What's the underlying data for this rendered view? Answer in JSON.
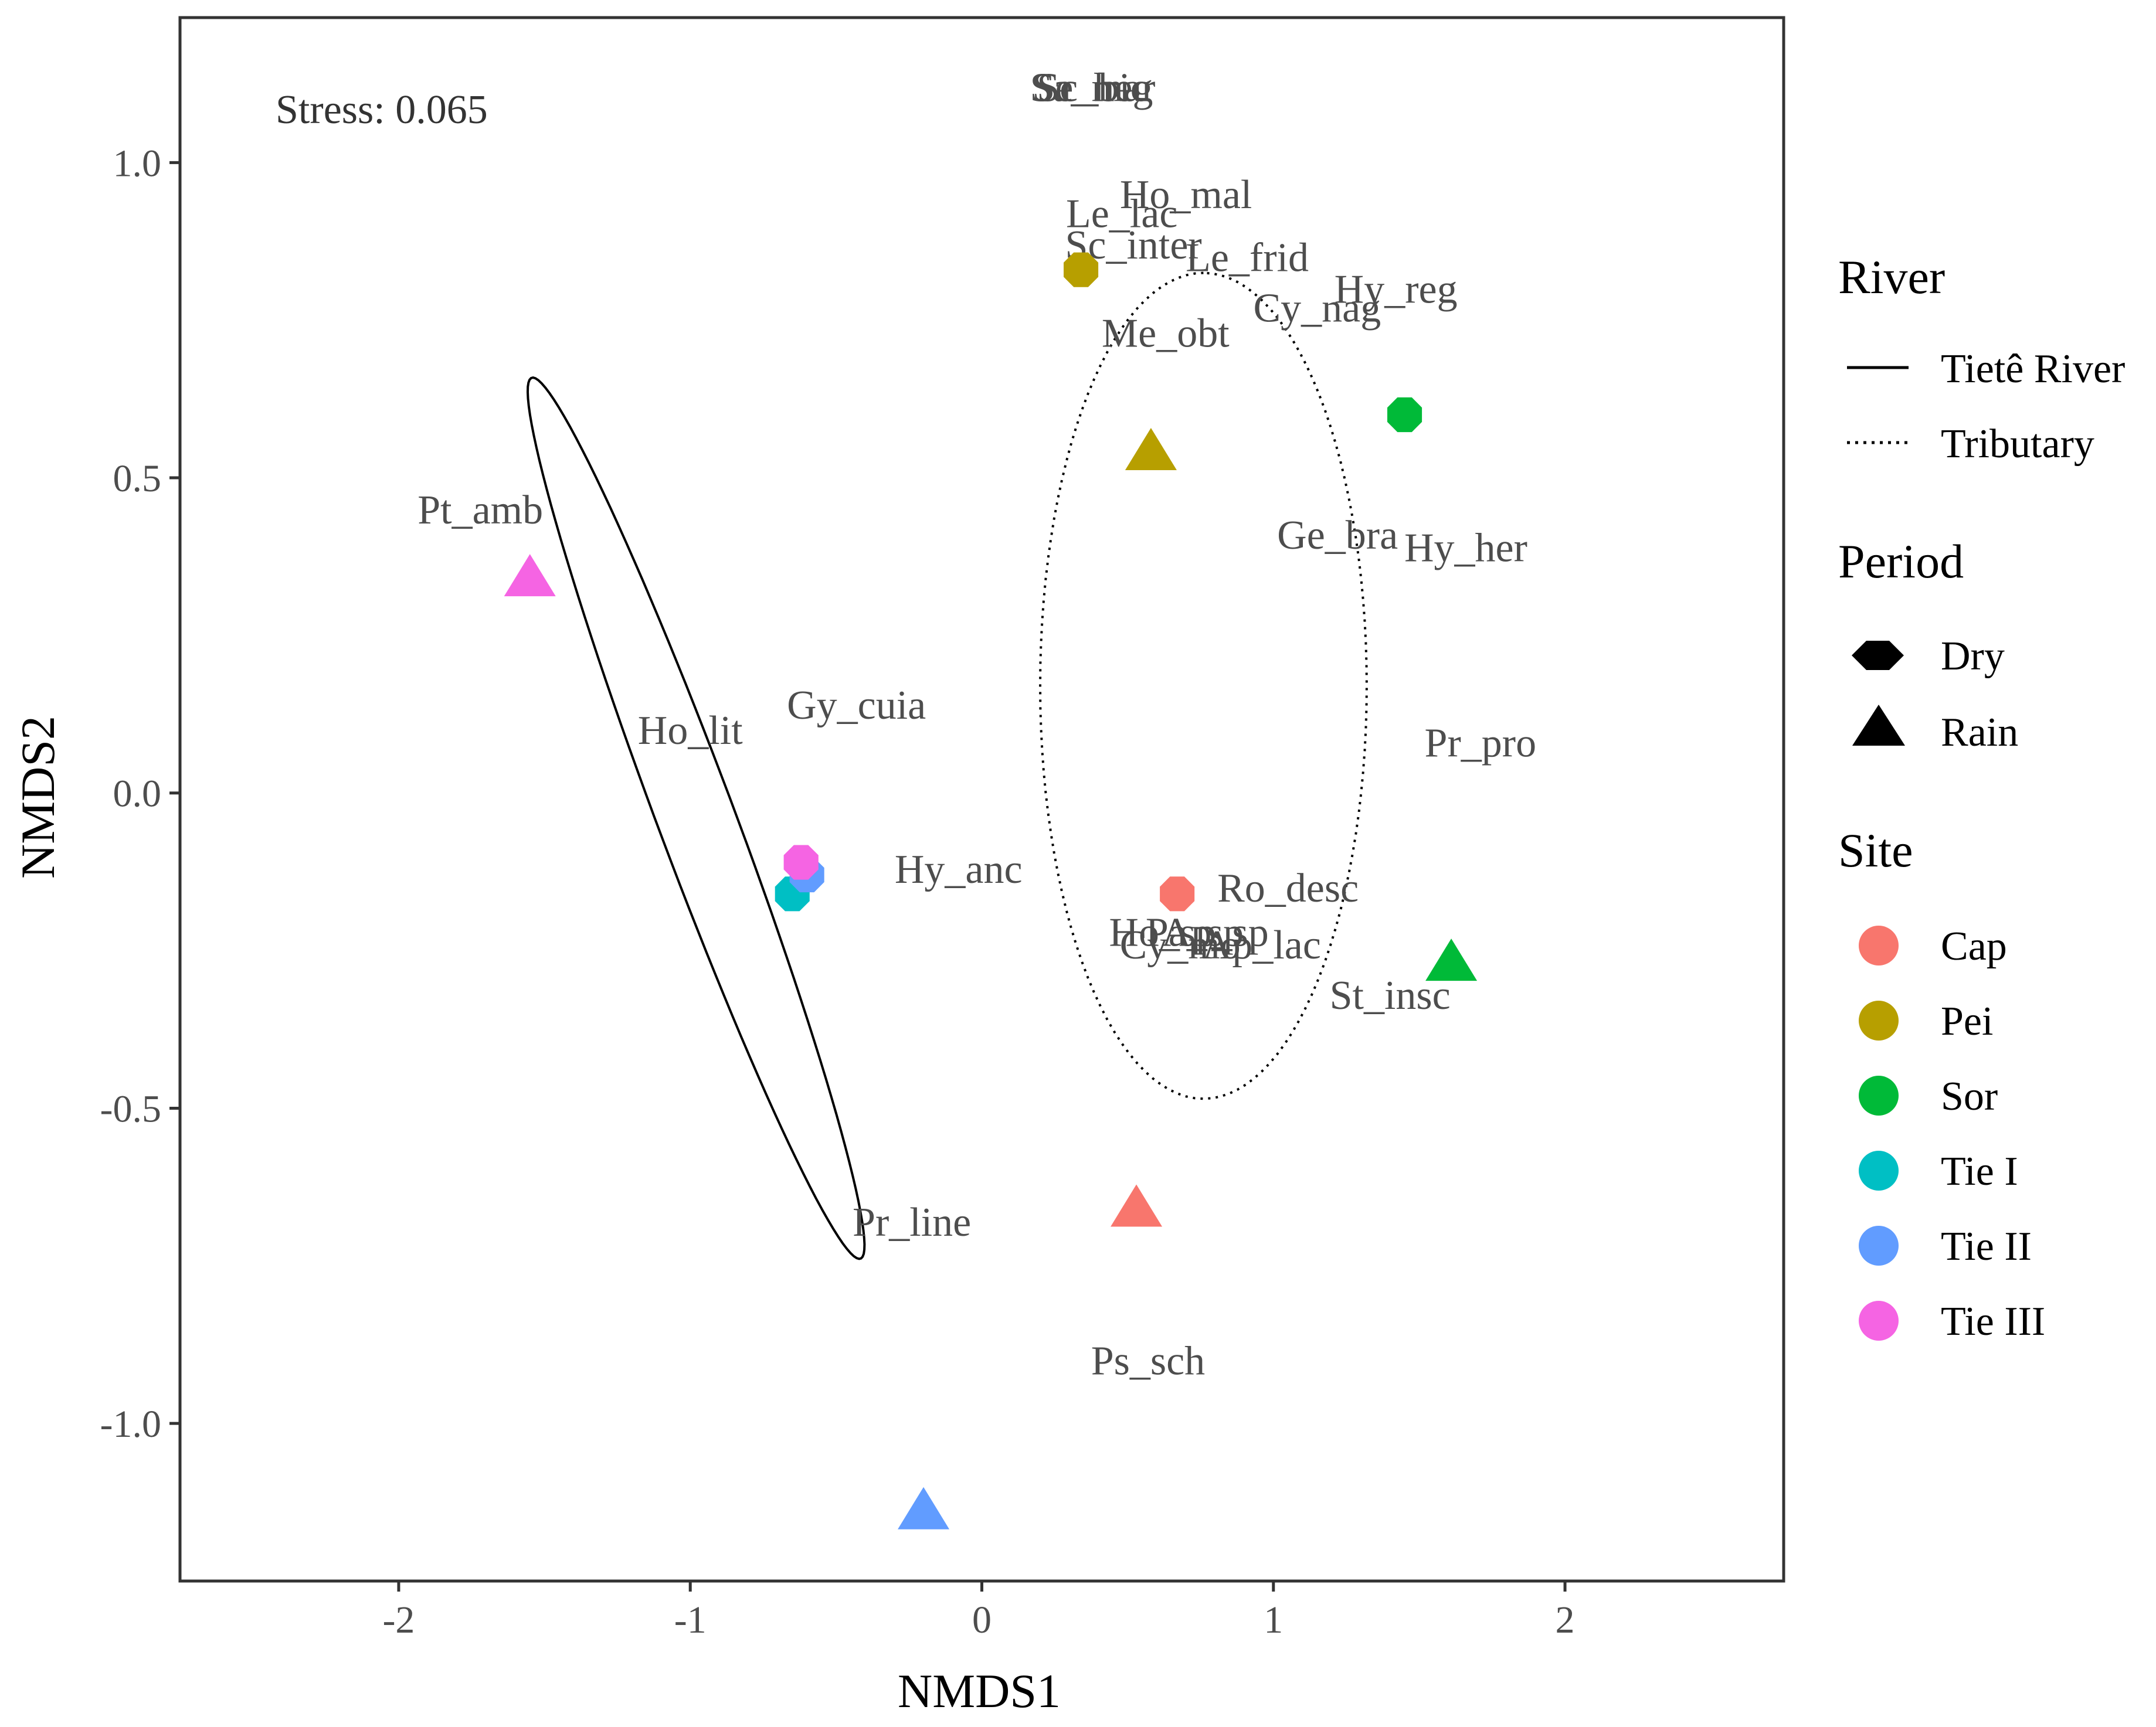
{
  "chart_data": {
    "type": "scatter",
    "xlabel": "NMDS1",
    "ylabel": "NMDS2",
    "xlim": [
      -2.75,
      2.75
    ],
    "ylim": [
      -1.25,
      1.23
    ],
    "xticks": [
      "-2",
      "-1",
      "0",
      "1",
      "2"
    ],
    "xtick_values": [
      -2,
      -1,
      0,
      1,
      2
    ],
    "yticks": [
      "-1.0",
      "-0.5",
      "0.0",
      "0.5",
      "1.0"
    ],
    "ytick_values": [
      -1.0,
      -0.5,
      0.0,
      0.5,
      1.0
    ],
    "grid": false,
    "stress": "Stress: 0.065",
    "site_colors": {
      "Cap": "#F8766D",
      "Pei": "#B79F00",
      "Sor": "#00BA38",
      "Tie I": "#00BFC4",
      "Tie II": "#619CFF",
      "Tie III": "#F564E3"
    },
    "points": [
      {
        "site": "Pei",
        "period": "Dry",
        "x": 0.34,
        "y": 0.83
      },
      {
        "site": "Sor",
        "period": "Dry",
        "x": 1.45,
        "y": 0.6
      },
      {
        "site": "Pei",
        "period": "Rain",
        "x": 0.58,
        "y": 0.54
      },
      {
        "site": "Tie III",
        "period": "Rain",
        "x": -1.55,
        "y": 0.34
      },
      {
        "site": "Tie I",
        "period": "Dry",
        "x": -0.65,
        "y": -0.16
      },
      {
        "site": "Tie II",
        "period": "Dry",
        "x": -0.6,
        "y": -0.13
      },
      {
        "site": "Tie III",
        "period": "Dry",
        "x": -0.62,
        "y": -0.11
      },
      {
        "site": "Cap",
        "period": "Dry",
        "x": 0.67,
        "y": -0.16
      },
      {
        "site": "Sor",
        "period": "Rain",
        "x": 1.61,
        "y": -0.27
      },
      {
        "site": "Cap",
        "period": "Rain",
        "x": 0.53,
        "y": -0.66
      },
      {
        "site": "Tie II",
        "period": "Rain",
        "x": -0.2,
        "y": -1.14
      }
    ],
    "species": [
      {
        "label": "Se_heg",
        "x": 0.38,
        "y": 1.12
      },
      {
        "label": "Sa_mar",
        "x": 0.38,
        "y": 1.12
      },
      {
        "label": "Sc_bic",
        "x": 0.38,
        "y": 1.12
      },
      {
        "label": "Ho_mal",
        "x": 0.7,
        "y": 0.95
      },
      {
        "label": "Le_lac",
        "x": 0.48,
        "y": 0.92
      },
      {
        "label": "Sc_inter",
        "x": 0.52,
        "y": 0.87
      },
      {
        "label": "Le_frid",
        "x": 0.91,
        "y": 0.85
      },
      {
        "label": "Hy_reg",
        "x": 1.42,
        "y": 0.8
      },
      {
        "label": "Cy_nag",
        "x": 1.15,
        "y": 0.77
      },
      {
        "label": "Me_obt",
        "x": 0.63,
        "y": 0.73
      },
      {
        "label": "Pt_amb",
        "x": -1.72,
        "y": 0.45
      },
      {
        "label": "Ge_bra",
        "x": 1.22,
        "y": 0.41
      },
      {
        "label": "Hy_her",
        "x": 1.66,
        "y": 0.39
      },
      {
        "label": "Gy_cuia",
        "x": -0.43,
        "y": 0.14
      },
      {
        "label": "Ho_lit",
        "x": -1.0,
        "y": 0.1
      },
      {
        "label": "Pr_pro",
        "x": 1.71,
        "y": 0.08
      },
      {
        "label": "Hy_anc",
        "x": -0.08,
        "y": -0.12
      },
      {
        "label": "Ro_desc",
        "x": 1.05,
        "y": -0.15
      },
      {
        "label": "Ho_sp",
        "x": 0.62,
        "y": -0.22
      },
      {
        "label": "Pa_sp",
        "x": 0.73,
        "y": -0.22
      },
      {
        "label": "Ap_sp",
        "x": 0.8,
        "y": -0.22
      },
      {
        "label": "Cy_mo",
        "x": 0.68,
        "y": -0.24
      },
      {
        "label": "Ap_lac",
        "x": 0.96,
        "y": -0.24
      },
      {
        "label": "St_insc",
        "x": 1.4,
        "y": -0.32
      },
      {
        "label": "Pr_line",
        "x": -0.24,
        "y": -0.68
      },
      {
        "label": "Ps_sch",
        "x": 0.57,
        "y": -0.9
      }
    ],
    "ellipses": [
      {
        "river": "Tietê River",
        "style": "solid",
        "cx": -0.98,
        "cy": -0.04,
        "semi_major": 0.9,
        "semi_minor": 0.11,
        "angle_deg": -50.6
      },
      {
        "river": "Tributary",
        "style": "dotted",
        "cx": 0.76,
        "cy": 0.17,
        "semi_major": 0.655,
        "semi_minor": 0.56,
        "angle_deg": 90
      }
    ]
  },
  "legend": {
    "river": {
      "title": "River",
      "items": [
        {
          "label": "Tietê River",
          "line": "solid"
        },
        {
          "label": "Tributary",
          "line": "dotted"
        }
      ]
    },
    "period": {
      "title": "Period",
      "items": [
        {
          "label": "Dry",
          "shape": "circle"
        },
        {
          "label": "Rain",
          "shape": "triangle"
        }
      ]
    },
    "site": {
      "title": "Site",
      "items": [
        {
          "label": "Cap",
          "color": "#F8766D"
        },
        {
          "label": "Pei",
          "color": "#B79F00"
        },
        {
          "label": "Sor",
          "color": "#00BA38"
        },
        {
          "label": "Tie I",
          "color": "#00BFC4"
        },
        {
          "label": "Tie II",
          "color": "#619CFF"
        },
        {
          "label": "Tie III",
          "color": "#F564E3"
        }
      ]
    }
  }
}
